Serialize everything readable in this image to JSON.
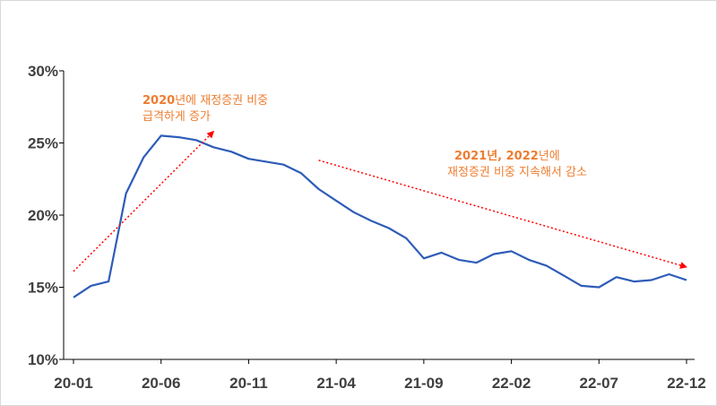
{
  "chart_data": {
    "type": "line",
    "title": "",
    "xlabel": "",
    "ylabel": "",
    "ylim": [
      0.1,
      0.3
    ],
    "y_ticks": [
      "10%",
      "15%",
      "20%",
      "25%",
      "30%"
    ],
    "x_tick_labels": [
      "20-01",
      "20-06",
      "20-11",
      "21-04",
      "21-09",
      "22-02",
      "22-07",
      "22-12"
    ],
    "grid": false,
    "line_color": "#2e5cb8",
    "annotation_color": "#ed7d31",
    "arrow_color": "#ff0000",
    "series": [
      {
        "x": [
          "20-01",
          "20-02",
          "20-03",
          "20-04",
          "20-05",
          "20-06",
          "20-07",
          "20-08",
          "20-09",
          "20-10",
          "20-11",
          "20-12",
          "21-01",
          "21-02",
          "21-03",
          "21-04",
          "21-05",
          "21-06",
          "21-07",
          "21-08",
          "21-09",
          "21-10",
          "21-11",
          "21-12",
          "22-01",
          "22-02",
          "22-03",
          "22-04",
          "22-05",
          "22-06",
          "22-07",
          "22-08",
          "22-09",
          "22-10",
          "22-11",
          "22-12"
        ],
        "values": [
          0.143,
          0.151,
          0.154,
          0.215,
          0.24,
          0.255,
          0.254,
          0.252,
          0.247,
          0.244,
          0.239,
          0.237,
          0.235,
          0.229,
          0.218,
          0.21,
          0.202,
          0.196,
          0.191,
          0.184,
          0.17,
          0.174,
          0.169,
          0.167,
          0.173,
          0.175,
          0.169,
          0.165,
          0.158,
          0.151,
          0.15,
          0.157,
          0.154,
          0.155,
          0.159,
          0.155
        ]
      }
    ],
    "annotations": [
      {
        "year": "2020",
        "line1_rest": "년에 재정증권 비중",
        "line2": "급격하게 증가"
      },
      {
        "year1": "2021",
        "mid": "년, ",
        "year2": "2022",
        "line1_rest": "년에",
        "line2": "재정증권 비중 지속해서 감소"
      }
    ],
    "trend_arrows": [
      {
        "from": {
          "x": "20-01",
          "y": 0.161
        },
        "to": {
          "x": "20-09",
          "y": 0.258
        }
      },
      {
        "from": {
          "x": "21-03",
          "y": 0.238
        },
        "to": {
          "x": "22-12",
          "y": 0.164
        }
      }
    ]
  }
}
